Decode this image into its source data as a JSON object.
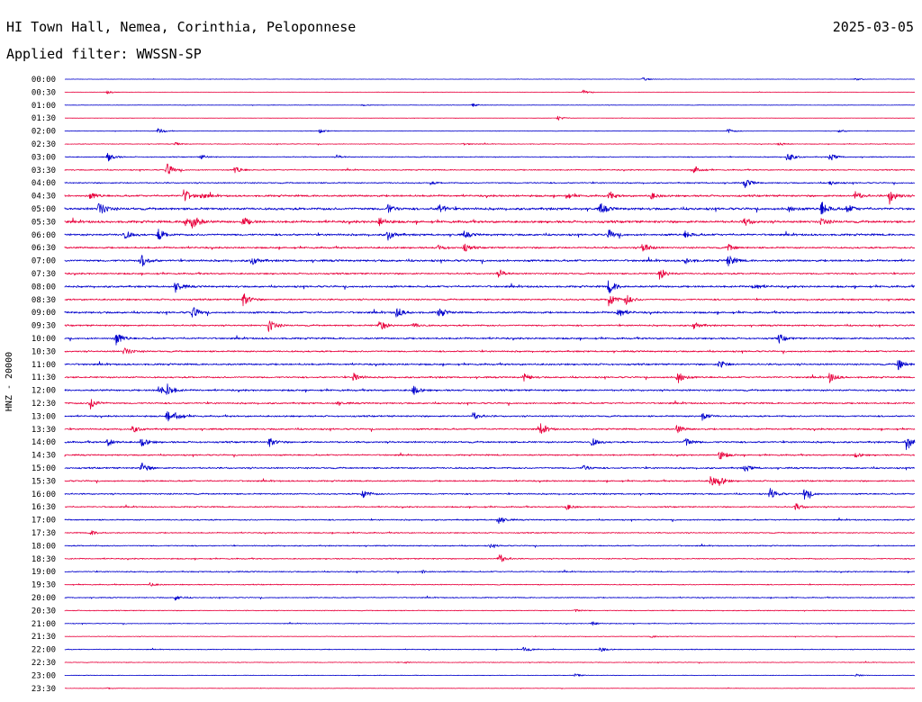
{
  "header": {
    "station": "HI Town Hall, Nemea, Corinthia, Peloponnese",
    "date": "2025-03-05",
    "filter": "Applied filter: WWSSN-SP"
  },
  "chart_data": {
    "type": "line",
    "ylabel": "HNZ - 20000",
    "time_labels": [
      "00:00",
      "00:30",
      "01:00",
      "01:30",
      "02:00",
      "02:30",
      "03:00",
      "03:30",
      "04:00",
      "04:30",
      "05:00",
      "05:30",
      "06:00",
      "06:30",
      "07:00",
      "07:30",
      "08:00",
      "08:30",
      "09:00",
      "09:30",
      "10:00",
      "10:30",
      "11:00",
      "11:30",
      "12:00",
      "12:30",
      "13:00",
      "13:30",
      "14:00",
      "14:30",
      "15:00",
      "15:30",
      "16:00",
      "16:30",
      "17:00",
      "17:30",
      "18:00",
      "18:30",
      "19:00",
      "19:30",
      "20:00",
      "20:30",
      "21:00",
      "21:30",
      "22:00",
      "22:30",
      "23:00",
      "23:30"
    ],
    "trace_colors": [
      "#0000cc",
      "#e8003c"
    ],
    "noise_level": [
      0.2,
      0.2,
      0.3,
      0.2,
      0.3,
      0.4,
      0.6,
      0.7,
      0.8,
      1.2,
      1.5,
      1.5,
      1.3,
      1.1,
      1.3,
      1.0,
      1.2,
      1.0,
      1.2,
      1.0,
      1.1,
      1.0,
      1.1,
      1.0,
      1.1,
      1.0,
      1.0,
      1.0,
      1.1,
      0.9,
      1.0,
      0.9,
      0.9,
      0.8,
      0.8,
      0.7,
      0.7,
      0.7,
      0.7,
      0.6,
      0.6,
      0.5,
      0.5,
      0.4,
      0.5,
      0.4,
      0.3,
      0.3
    ],
    "events": [
      [
        [
          0.68,
          0.5
        ],
        [
          0.93,
          0.4
        ]
      ],
      [
        [
          0.05,
          0.6
        ],
        [
          0.61,
          0.7
        ]
      ],
      [
        [
          0.35,
          0.3
        ],
        [
          0.48,
          0.5
        ]
      ],
      [
        [
          0.58,
          0.8
        ]
      ],
      [
        [
          0.11,
          1.0
        ],
        [
          0.3,
          0.7
        ],
        [
          0.78,
          0.8
        ],
        [
          0.91,
          0.6
        ]
      ],
      [
        [
          0.13,
          0.5
        ],
        [
          0.47,
          0.4
        ],
        [
          0.84,
          0.6
        ]
      ],
      [
        [
          0.05,
          1.6
        ],
        [
          0.16,
          0.8
        ],
        [
          0.32,
          0.6
        ],
        [
          0.85,
          1.8
        ],
        [
          0.9,
          1.3
        ]
      ],
      [
        [
          0.12,
          2.2
        ],
        [
          0.2,
          1.3
        ],
        [
          0.74,
          1.6
        ]
      ],
      [
        [
          0.43,
          0.5
        ],
        [
          0.8,
          1.6
        ],
        [
          0.9,
          0.8
        ]
      ],
      [
        [
          0.03,
          1.2
        ],
        [
          0.14,
          2.4
        ],
        [
          0.16,
          1.0
        ],
        [
          0.59,
          1.0
        ],
        [
          0.64,
          1.2
        ],
        [
          0.69,
          1.1
        ],
        [
          0.97,
          3.0
        ],
        [
          0.93,
          1.5
        ]
      ],
      [
        [
          0.04,
          2.5
        ],
        [
          0.38,
          1.5
        ],
        [
          0.44,
          1.8
        ],
        [
          0.63,
          1.9
        ],
        [
          0.85,
          1.2
        ],
        [
          0.89,
          2.6
        ],
        [
          0.92,
          1.5
        ]
      ],
      [
        [
          0.14,
          2.0
        ],
        [
          0.15,
          2.5
        ],
        [
          0.21,
          1.5
        ],
        [
          0.37,
          1.6
        ],
        [
          0.8,
          1.3
        ],
        [
          0.89,
          1.1
        ]
      ],
      [
        [
          0.07,
          1.5
        ],
        [
          0.11,
          2.0
        ],
        [
          0.38,
          1.8
        ],
        [
          0.47,
          1.1
        ],
        [
          0.64,
          1.6
        ],
        [
          0.73,
          1.2
        ]
      ],
      [
        [
          0.44,
          0.9
        ],
        [
          0.47,
          1.3
        ],
        [
          0.68,
          2.0
        ],
        [
          0.78,
          1.2
        ]
      ],
      [
        [
          0.09,
          2.3
        ],
        [
          0.22,
          1.5
        ],
        [
          0.73,
          1.1
        ],
        [
          0.78,
          2.2
        ]
      ],
      [
        [
          0.51,
          1.5
        ],
        [
          0.7,
          2.0
        ]
      ],
      [
        [
          0.13,
          2.0
        ],
        [
          0.64,
          2.6
        ],
        [
          0.81,
          1.4
        ]
      ],
      [
        [
          0.21,
          2.3
        ],
        [
          0.64,
          2.5
        ],
        [
          0.66,
          1.8
        ]
      ],
      [
        [
          0.15,
          2.0
        ],
        [
          0.39,
          2.0
        ],
        [
          0.44,
          1.8
        ],
        [
          0.65,
          2.2
        ]
      ],
      [
        [
          0.24,
          2.2
        ],
        [
          0.37,
          2.0
        ],
        [
          0.41,
          1.0
        ],
        [
          0.74,
          1.3
        ]
      ],
      [
        [
          0.06,
          2.5
        ],
        [
          0.84,
          1.5
        ]
      ],
      [
        [
          0.07,
          1.4
        ]
      ],
      [
        [
          0.77,
          1.6
        ],
        [
          0.98,
          2.0
        ]
      ],
      [
        [
          0.34,
          1.6
        ],
        [
          0.54,
          1.3
        ],
        [
          0.72,
          2.5
        ],
        [
          0.9,
          1.8
        ]
      ],
      [
        [
          0.11,
          1.6
        ],
        [
          0.12,
          2.0
        ],
        [
          0.41,
          1.6
        ]
      ],
      [
        [
          0.03,
          2.0
        ],
        [
          0.32,
          0.6
        ]
      ],
      [
        [
          0.12,
          1.6
        ],
        [
          0.13,
          1.6
        ],
        [
          0.48,
          1.4
        ],
        [
          0.75,
          1.5
        ]
      ],
      [
        [
          0.08,
          1.2
        ],
        [
          0.56,
          1.8
        ],
        [
          0.72,
          1.4
        ]
      ],
      [
        [
          0.05,
          1.3
        ],
        [
          0.09,
          1.8
        ],
        [
          0.24,
          1.6
        ],
        [
          0.62,
          1.3
        ],
        [
          0.73,
          1.6
        ],
        [
          0.99,
          3.0
        ]
      ],
      [
        [
          0.77,
          1.7
        ],
        [
          0.93,
          0.9
        ]
      ],
      [
        [
          0.09,
          1.9
        ],
        [
          0.61,
          1.0
        ],
        [
          0.8,
          1.2
        ]
      ],
      [
        [
          0.76,
          1.9
        ],
        [
          0.77,
          1.3
        ]
      ],
      [
        [
          0.35,
          1.6
        ],
        [
          0.83,
          1.9
        ],
        [
          0.87,
          2.2
        ]
      ],
      [
        [
          0.59,
          1.0
        ],
        [
          0.86,
          1.2
        ]
      ],
      [
        [
          0.51,
          1.5
        ]
      ],
      [
        [
          0.03,
          0.9
        ]
      ],
      [
        [
          0.5,
          0.6
        ]
      ],
      [
        [
          0.51,
          1.9
        ]
      ],
      [
        [
          0.42,
          0.5
        ]
      ],
      [
        [
          0.1,
          0.6
        ]
      ],
      [
        [
          0.13,
          1.0
        ]
      ],
      [
        [
          0.6,
          0.5
        ]
      ],
      [
        [
          0.62,
          0.8
        ]
      ],
      [
        [
          0.69,
          0.5
        ]
      ],
      [
        [
          0.54,
          1.0
        ],
        [
          0.63,
          0.8
        ]
      ],
      [
        [
          0.4,
          0.3
        ]
      ],
      [
        [
          0.6,
          0.6
        ],
        [
          0.93,
          0.5
        ]
      ],
      [
        [
          0.05,
          0.3
        ]
      ]
    ]
  }
}
